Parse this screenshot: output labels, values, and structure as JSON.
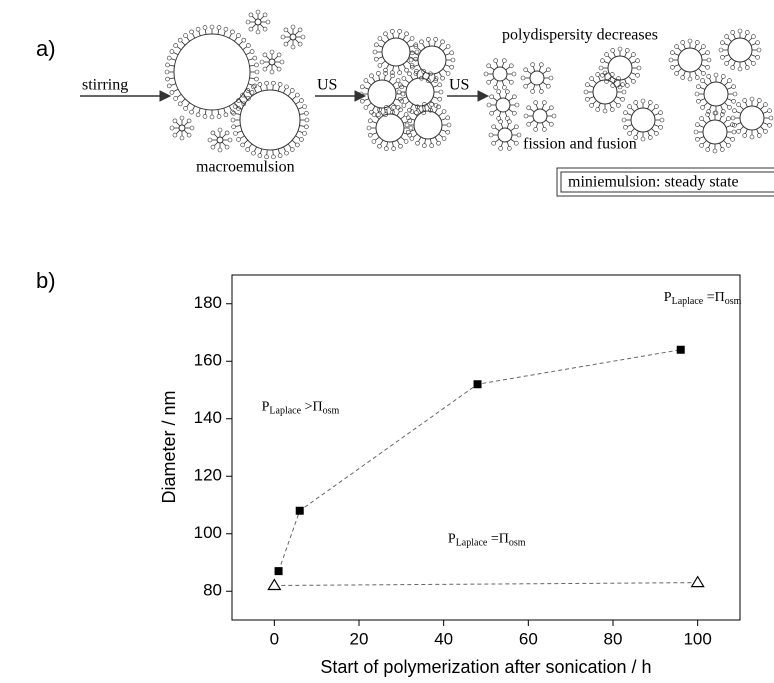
{
  "panel_a": {
    "label": "a)",
    "stirring": "stirring",
    "us_1": "US",
    "us_2": "US",
    "macroemulsion": "macroemulsion",
    "polydispersity": "polydispersity decreases",
    "fission": "fission and fusion",
    "steady_state": "miniemulsion: steady state"
  },
  "chart_data": {
    "type": "scatter",
    "panel_label": "b)",
    "y_label": "Diameter / nm",
    "x_label": "Start of polymerization after sonication / h",
    "annotations": [
      {
        "parts": [
          "P",
          "Laplace",
          " =Π",
          "osm"
        ],
        "x": 92,
        "y": 182
      },
      {
        "parts": [
          "P",
          "Laplace",
          " >Π",
          "osm"
        ],
        "x": -3,
        "y": 144
      },
      {
        "parts": [
          "P",
          "Laplace",
          " =Π",
          "osm"
        ],
        "x": 41,
        "y": 98
      }
    ],
    "series": [
      {
        "marker": "square",
        "color": "#000000",
        "x": [
          1,
          6,
          48,
          96
        ],
        "values": [
          87,
          108,
          152,
          164
        ]
      },
      {
        "marker": "open-triangle",
        "color": "#000000",
        "x": [
          0,
          100
        ],
        "values": [
          82,
          83
        ]
      }
    ],
    "xlim": [
      -10,
      110
    ],
    "xticks": [
      0,
      20,
      40,
      60,
      80,
      100
    ],
    "ylim": [
      70,
      190
    ],
    "yticks": [
      80,
      100,
      120,
      140,
      160,
      180
    ]
  }
}
